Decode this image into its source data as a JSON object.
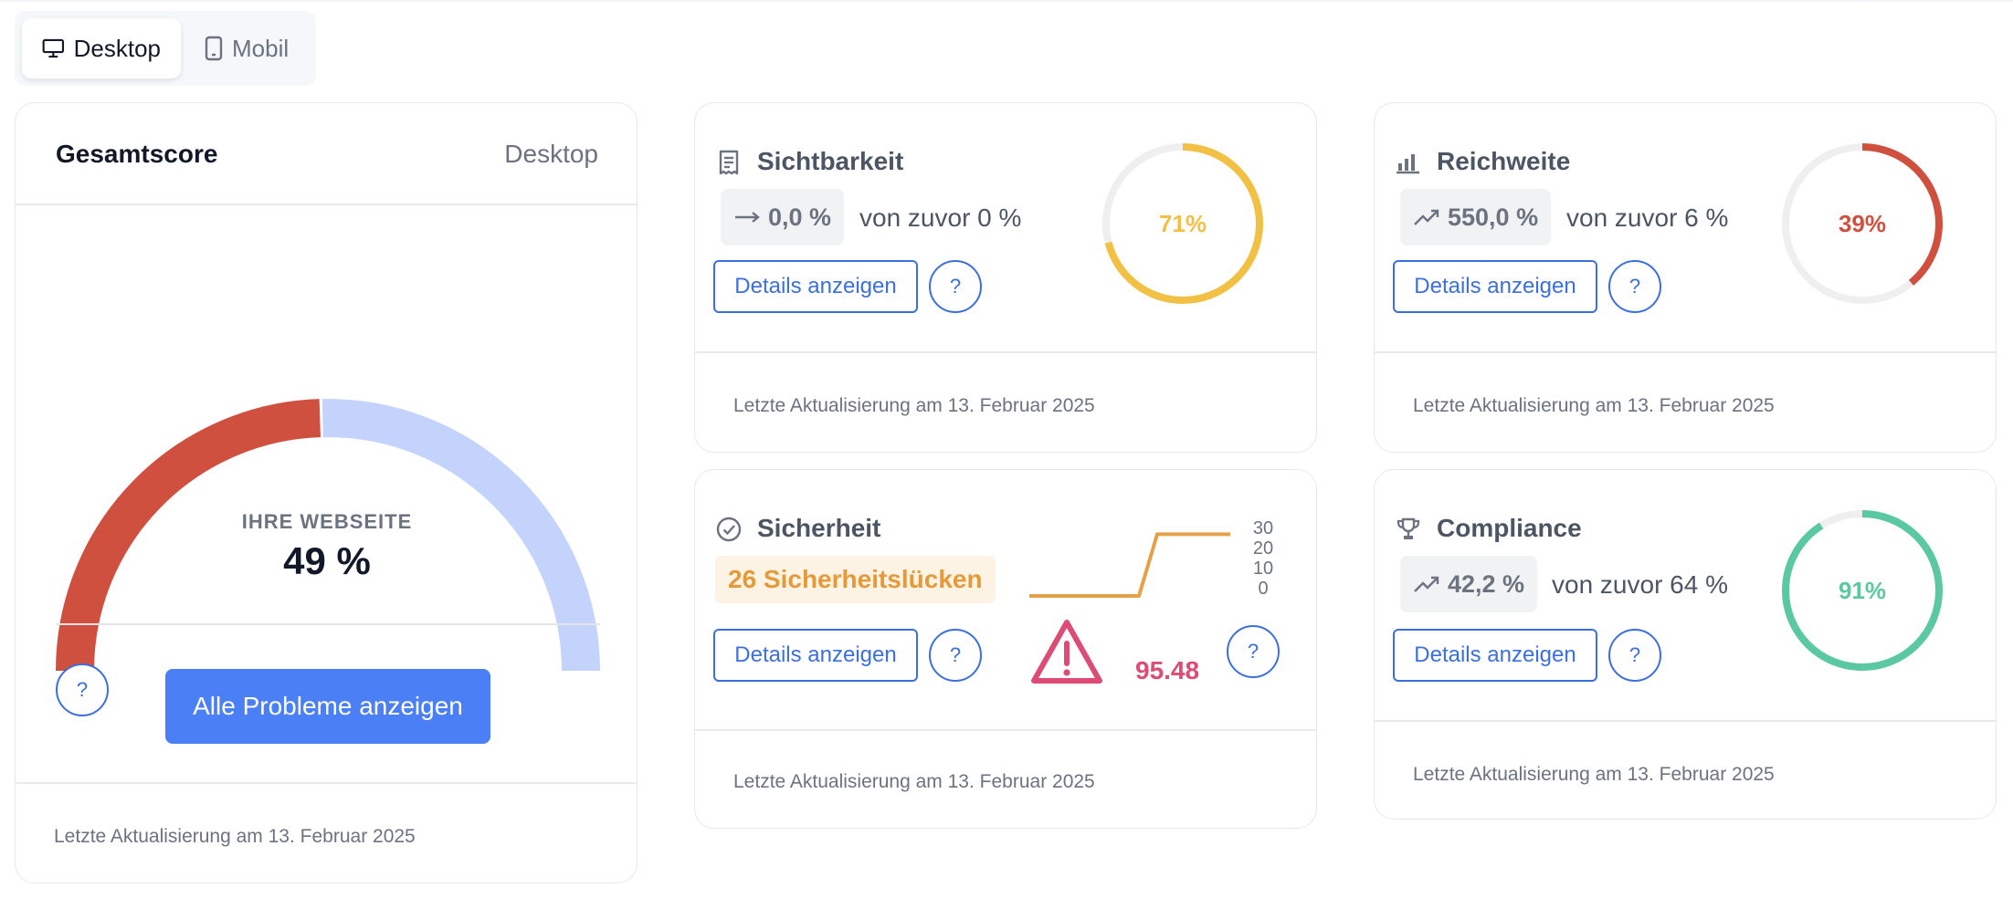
{
  "toggle": {
    "desktop_label": "Desktop",
    "mobile_label": "Mobil"
  },
  "overall": {
    "title": "Gesamtscore",
    "device": "Desktop",
    "label": "IHRE WEBSEITE",
    "value": "49 %",
    "score": 49,
    "help": "?",
    "button": "Alle Probleme anzeigen",
    "footer": "Letzte Aktualisierung am 13. Februar 2025",
    "colors": {
      "filled": "#d0503f",
      "empty": "#c3d3fb"
    }
  },
  "visibility": {
    "title": "Sichtbarkeit",
    "icon": "receipt-icon",
    "trend_icon": "arrow-right-icon",
    "delta": "0,0 %",
    "previous": "von zuvor 0 %",
    "details": "Details anzeigen",
    "help": "?",
    "percent_label": "71%",
    "percent": 71,
    "color": "#f2c044",
    "footer": "Letzte Aktualisierung am 13. Februar 2025"
  },
  "reach": {
    "title": "Reichweite",
    "icon": "bar-chart-icon",
    "trend_icon": "trending-up-icon",
    "delta": "550,0 %",
    "previous": "von zuvor 6 %",
    "details": "Details anzeigen",
    "help": "?",
    "percent_label": "39%",
    "percent": 39,
    "color": "#d0503f",
    "footer": "Letzte Aktualisierung am 13. Februar 2025"
  },
  "security": {
    "title": "Sicherheit",
    "icon": "check-circle-icon",
    "badge": "26 Sicherheitslücken",
    "details": "Details anzeigen",
    "help": "?",
    "help2": "?",
    "score": "95.48",
    "score_color": "#dc4c74",
    "footer": "Letzte Aktualisierung am 13. Februar 2025",
    "sparkline": {
      "ticks": [
        "30",
        "20",
        "10",
        "0"
      ],
      "ylim": [
        0,
        30
      ],
      "values": [
        0,
        0,
        0,
        0,
        0,
        0,
        0,
        26,
        26,
        26,
        26,
        26
      ],
      "color": "#e5a04a"
    }
  },
  "compliance": {
    "title": "Compliance",
    "icon": "trophy-icon",
    "trend_icon": "trending-up-icon",
    "delta": "42,2 %",
    "previous": "von zuvor 64 %",
    "details": "Details anzeigen",
    "help": "?",
    "percent_label": "91%",
    "percent": 91,
    "color": "#5ac8a0",
    "footer": "Letzte Aktualisierung am 13. Februar 2025"
  }
}
